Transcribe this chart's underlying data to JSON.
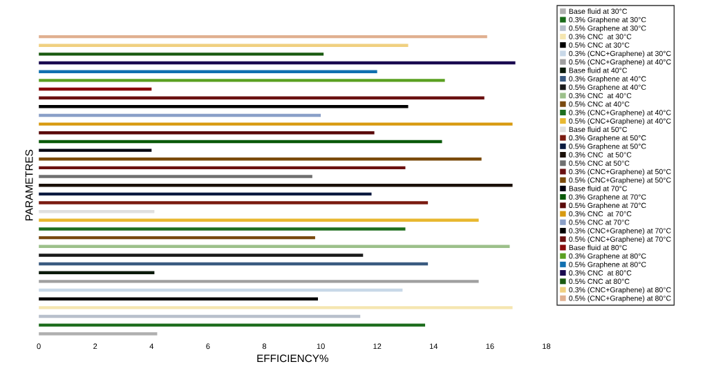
{
  "chart_data": {
    "type": "bar",
    "orientation": "horizontal",
    "xlabel": "EFFICIENCY%",
    "ylabel": "PARAMETRES",
    "categories": [
      null,
      null,
      null,
      null,
      null,
      null,
      null,
      null,
      null,
      null,
      null,
      null,
      null,
      null,
      null,
      null,
      null,
      null,
      null,
      null,
      null,
      null,
      null,
      null,
      null,
      null,
      null,
      null,
      null,
      null,
      null,
      null,
      null,
      null,
      null
    ],
    "xlim": [
      0,
      18
    ],
    "xticks": [
      0,
      2,
      4,
      6,
      8,
      10,
      12,
      14,
      16,
      18
    ],
    "tick_labels": "x",
    "grid": false,
    "stacked": true,
    "legend": "right",
    "series": [
      {
        "name": "Base fluid at 30°C",
        "color": "#b0b0b0",
        "values": [
          null,
          null,
          null,
          null,
          null,
          null,
          null,
          null,
          null,
          null,
          null,
          null,
          null,
          null,
          null,
          null,
          null,
          null,
          null,
          null,
          null,
          null,
          null,
          null,
          null,
          null,
          null,
          null,
          null,
          null,
          null,
          null,
          null,
          null,
          4.2
        ]
      },
      {
        "name": "0.3% Graphene at 30°C",
        "color": "#1a6b1a",
        "values": [
          null,
          null,
          null,
          null,
          null,
          null,
          null,
          null,
          null,
          null,
          null,
          null,
          null,
          null,
          null,
          null,
          null,
          null,
          null,
          null,
          null,
          null,
          null,
          null,
          null,
          null,
          null,
          null,
          null,
          null,
          null,
          null,
          null,
          13.7,
          null
        ]
      },
      {
        "name": "0.5% Graphene at 30°C",
        "color": "#b8c0cc",
        "values": [
          null,
          null,
          null,
          null,
          null,
          null,
          null,
          null,
          null,
          null,
          null,
          null,
          null,
          null,
          null,
          null,
          null,
          null,
          null,
          null,
          null,
          null,
          null,
          null,
          null,
          null,
          null,
          null,
          null,
          null,
          null,
          null,
          11.4,
          null,
          null
        ]
      },
      {
        "name": "0.3% CNC  at 30°C",
        "color": "#f5e6b0",
        "values": [
          null,
          null,
          null,
          null,
          null,
          null,
          null,
          null,
          null,
          null,
          null,
          null,
          null,
          null,
          null,
          null,
          null,
          null,
          null,
          null,
          null,
          null,
          null,
          null,
          null,
          null,
          null,
          null,
          null,
          null,
          null,
          16.8,
          null,
          null,
          null
        ]
      },
      {
        "name": "0.5% CNC at 30°C",
        "color": "#000000",
        "values": [
          null,
          null,
          null,
          null,
          null,
          null,
          null,
          null,
          null,
          null,
          null,
          null,
          null,
          null,
          null,
          null,
          null,
          null,
          null,
          null,
          null,
          null,
          null,
          null,
          null,
          null,
          null,
          null,
          null,
          null,
          9.9,
          null,
          null,
          null,
          null
        ]
      },
      {
        "name": "0.3% (CNC+Graphene) at 30°C",
        "color": "#c8d8e8",
        "values": [
          null,
          null,
          null,
          null,
          null,
          null,
          null,
          null,
          null,
          null,
          null,
          null,
          null,
          null,
          null,
          null,
          null,
          null,
          null,
          null,
          null,
          null,
          null,
          null,
          null,
          null,
          null,
          null,
          null,
          12.9,
          null,
          null,
          null,
          null,
          null
        ]
      },
      {
        "name": "0.5% (CNC+Graphene) at 40°C",
        "color": "#a0a0a0",
        "values": [
          null,
          null,
          null,
          null,
          null,
          null,
          null,
          null,
          null,
          null,
          null,
          null,
          null,
          null,
          null,
          null,
          null,
          null,
          null,
          null,
          null,
          null,
          null,
          null,
          null,
          null,
          null,
          null,
          15.6,
          null,
          null,
          null,
          null,
          null,
          null
        ]
      },
      {
        "name": "Base fluid at 40°C",
        "color": "#0a1a0a",
        "values": [
          null,
          null,
          null,
          null,
          null,
          null,
          null,
          null,
          null,
          null,
          null,
          null,
          null,
          null,
          null,
          null,
          null,
          null,
          null,
          null,
          null,
          null,
          null,
          null,
          null,
          null,
          null,
          4.1,
          null,
          null,
          null,
          null,
          null,
          null,
          null
        ]
      },
      {
        "name": "0.3% Graphene at 40°C",
        "color": "#3a5a80",
        "values": [
          null,
          null,
          null,
          null,
          null,
          null,
          null,
          null,
          null,
          null,
          null,
          null,
          null,
          null,
          null,
          null,
          null,
          null,
          null,
          null,
          null,
          null,
          null,
          null,
          null,
          null,
          13.8,
          null,
          null,
          null,
          null,
          null,
          null,
          null,
          null
        ]
      },
      {
        "name": "0.5% Graphene at 40°C",
        "color": "#1a1a1a",
        "values": [
          null,
          null,
          null,
          null,
          null,
          null,
          null,
          null,
          null,
          null,
          null,
          null,
          null,
          null,
          null,
          null,
          null,
          null,
          null,
          null,
          null,
          null,
          null,
          null,
          null,
          11.5,
          null,
          null,
          null,
          null,
          null,
          null,
          null,
          null,
          null
        ]
      },
      {
        "name": "0.3% CNC  at 40°C",
        "color": "#9cc08a",
        "values": [
          null,
          null,
          null,
          null,
          null,
          null,
          null,
          null,
          null,
          null,
          null,
          null,
          null,
          null,
          null,
          null,
          null,
          null,
          null,
          null,
          null,
          null,
          null,
          null,
          16.7,
          null,
          null,
          null,
          null,
          null,
          null,
          null,
          null,
          null,
          null
        ]
      },
      {
        "name": "0.5% CNC at 40°C",
        "color": "#7a4a10",
        "values": [
          null,
          null,
          null,
          null,
          null,
          null,
          null,
          null,
          null,
          null,
          null,
          null,
          null,
          null,
          null,
          null,
          null,
          null,
          null,
          null,
          null,
          null,
          null,
          9.8,
          null,
          null,
          null,
          null,
          null,
          null,
          null,
          null,
          null,
          null,
          null
        ]
      },
      {
        "name": "0.3% (CNC+Graphene) at 40°C",
        "color": "#1e6e1e",
        "values": [
          null,
          null,
          null,
          null,
          null,
          null,
          null,
          null,
          null,
          null,
          null,
          null,
          null,
          null,
          null,
          null,
          null,
          null,
          null,
          null,
          null,
          null,
          13.0,
          null,
          null,
          null,
          null,
          null,
          null,
          null,
          null,
          null,
          null,
          null,
          null
        ]
      },
      {
        "name": "0.5% (CNC+Graphene) at 40°C",
        "color": "#e8b830",
        "values": [
          null,
          null,
          null,
          null,
          null,
          null,
          null,
          null,
          null,
          null,
          null,
          null,
          null,
          null,
          null,
          null,
          null,
          null,
          null,
          null,
          null,
          15.6,
          null,
          null,
          null,
          null,
          null,
          null,
          null,
          null,
          null,
          null,
          null,
          null,
          null
        ]
      },
      {
        "name": "Base fluid at 50°C",
        "color": "#e0e0e0",
        "values": [
          null,
          null,
          null,
          null,
          null,
          null,
          null,
          null,
          null,
          null,
          null,
          null,
          null,
          null,
          null,
          null,
          null,
          null,
          null,
          null,
          4.1,
          null,
          null,
          null,
          null,
          null,
          null,
          null,
          null,
          null,
          null,
          null,
          null,
          null,
          null
        ]
      },
      {
        "name": "0.3% Graphene at 50°C",
        "color": "#7a1a10",
        "values": [
          null,
          null,
          null,
          null,
          null,
          null,
          null,
          null,
          null,
          null,
          null,
          null,
          null,
          null,
          null,
          null,
          null,
          null,
          null,
          13.8,
          null,
          null,
          null,
          null,
          null,
          null,
          null,
          null,
          null,
          null,
          null,
          null,
          null,
          null,
          null
        ]
      },
      {
        "name": "0.5% Graphene at 50°C",
        "color": "#0a1a40",
        "values": [
          null,
          null,
          null,
          null,
          null,
          null,
          null,
          null,
          null,
          null,
          null,
          null,
          null,
          null,
          null,
          null,
          null,
          null,
          11.8,
          null,
          null,
          null,
          null,
          null,
          null,
          null,
          null,
          null,
          null,
          null,
          null,
          null,
          null,
          null,
          null
        ]
      },
      {
        "name": "0.3% CNC  at 50°C",
        "color": "#1a1008",
        "values": [
          null,
          null,
          null,
          null,
          null,
          null,
          null,
          null,
          null,
          null,
          null,
          null,
          null,
          null,
          null,
          null,
          null,
          16.8,
          null,
          null,
          null,
          null,
          null,
          null,
          null,
          null,
          null,
          null,
          null,
          null,
          null,
          null,
          null,
          null,
          null
        ]
      },
      {
        "name": "0.5% CNC at 50°C",
        "color": "#707070",
        "values": [
          null,
          null,
          null,
          null,
          null,
          null,
          null,
          null,
          null,
          null,
          null,
          null,
          null,
          null,
          null,
          null,
          9.7,
          null,
          null,
          null,
          null,
          null,
          null,
          null,
          null,
          null,
          null,
          null,
          null,
          null,
          null,
          null,
          null,
          null,
          null
        ]
      },
      {
        "name": "0.3% (CNC+Graphene) at 50°C",
        "color": "#6a1010",
        "values": [
          null,
          null,
          null,
          null,
          null,
          null,
          null,
          null,
          null,
          null,
          null,
          null,
          null,
          null,
          null,
          13.0,
          null,
          null,
          null,
          null,
          null,
          null,
          null,
          null,
          null,
          null,
          null,
          null,
          null,
          null,
          null,
          null,
          null,
          null,
          null
        ]
      },
      {
        "name": "0.5% (CNC+Graphene) at 50°C",
        "color": "#7a4a0a",
        "values": [
          null,
          null,
          null,
          null,
          null,
          null,
          null,
          null,
          null,
          null,
          null,
          null,
          null,
          null,
          15.7,
          null,
          null,
          null,
          null,
          null,
          null,
          null,
          null,
          null,
          null,
          null,
          null,
          null,
          null,
          null,
          null,
          null,
          null,
          null,
          null
        ]
      },
      {
        "name": "Base fluid at 70°C",
        "color": "#000010",
        "values": [
          null,
          null,
          null,
          null,
          null,
          null,
          null,
          null,
          null,
          null,
          null,
          null,
          null,
          4.0,
          null,
          null,
          null,
          null,
          null,
          null,
          null,
          null,
          null,
          null,
          null,
          null,
          null,
          null,
          null,
          null,
          null,
          null,
          null,
          null,
          null
        ]
      },
      {
        "name": "0.3% Graphene at 70°C",
        "color": "#0a5a0a",
        "values": [
          null,
          null,
          null,
          null,
          null,
          null,
          null,
          null,
          null,
          null,
          null,
          null,
          14.3,
          null,
          null,
          null,
          null,
          null,
          null,
          null,
          null,
          null,
          null,
          null,
          null,
          null,
          null,
          null,
          null,
          null,
          null,
          null,
          null,
          null,
          null
        ]
      },
      {
        "name": "0.5% Graphene at 70°C",
        "color": "#5a0a0a",
        "values": [
          null,
          null,
          null,
          null,
          null,
          null,
          null,
          null,
          null,
          null,
          null,
          11.9,
          null,
          null,
          null,
          null,
          null,
          null,
          null,
          null,
          null,
          null,
          null,
          null,
          null,
          null,
          null,
          null,
          null,
          null,
          null,
          null,
          null,
          null,
          null
        ]
      },
      {
        "name": "0.3% CNC  at 70°C",
        "color": "#d89a10",
        "values": [
          null,
          null,
          null,
          null,
          null,
          null,
          null,
          null,
          null,
          null,
          16.8,
          null,
          null,
          null,
          null,
          null,
          null,
          null,
          null,
          null,
          null,
          null,
          null,
          null,
          null,
          null,
          null,
          null,
          null,
          null,
          null,
          null,
          null,
          null,
          null
        ]
      },
      {
        "name": "0.5% CNC at 70°C",
        "color": "#8aa0c8",
        "values": [
          null,
          null,
          null,
          null,
          null,
          null,
          null,
          null,
          null,
          10.0,
          null,
          null,
          null,
          null,
          null,
          null,
          null,
          null,
          null,
          null,
          null,
          null,
          null,
          null,
          null,
          null,
          null,
          null,
          null,
          null,
          null,
          null,
          null,
          null,
          null
        ]
      },
      {
        "name": "0.3% (CNC+Graphene) at 70°C",
        "color": "#000000",
        "values": [
          null,
          null,
          null,
          null,
          null,
          null,
          null,
          null,
          13.1,
          null,
          null,
          null,
          null,
          null,
          null,
          null,
          null,
          null,
          null,
          null,
          null,
          null,
          null,
          null,
          null,
          null,
          null,
          null,
          null,
          null,
          null,
          null,
          null,
          null,
          null
        ]
      },
      {
        "name": "0.5% (CNC+Graphene) at 70°C",
        "color": "#6a1010",
        "values": [
          null,
          null,
          null,
          null,
          null,
          null,
          null,
          15.8,
          null,
          null,
          null,
          null,
          null,
          null,
          null,
          null,
          null,
          null,
          null,
          null,
          null,
          null,
          null,
          null,
          null,
          null,
          null,
          null,
          null,
          null,
          null,
          null,
          null,
          null,
          null
        ]
      },
      {
        "name": "Base fluid at 80°C",
        "color": "#8a0a0a",
        "values": [
          null,
          null,
          null,
          null,
          null,
          null,
          4.0,
          null,
          null,
          null,
          null,
          null,
          null,
          null,
          null,
          null,
          null,
          null,
          null,
          null,
          null,
          null,
          null,
          null,
          null,
          null,
          null,
          null,
          null,
          null,
          null,
          null,
          null,
          null,
          null
        ]
      },
      {
        "name": "0.3% Graphene at 80°C",
        "color": "#5aa020",
        "values": [
          null,
          null,
          null,
          null,
          null,
          14.4,
          null,
          null,
          null,
          null,
          null,
          null,
          null,
          null,
          null,
          null,
          null,
          null,
          null,
          null,
          null,
          null,
          null,
          null,
          null,
          null,
          null,
          null,
          null,
          null,
          null,
          null,
          null,
          null,
          null
        ]
      },
      {
        "name": "0.5% Graphene at 80°C",
        "color": "#1070b0",
        "values": [
          null,
          null,
          null,
          null,
          12.0,
          null,
          null,
          null,
          null,
          null,
          null,
          null,
          null,
          null,
          null,
          null,
          null,
          null,
          null,
          null,
          null,
          null,
          null,
          null,
          null,
          null,
          null,
          null,
          null,
          null,
          null,
          null,
          null,
          null,
          null
        ]
      },
      {
        "name": "0.3% CNC  at 80°C",
        "color": "#1a0a50",
        "values": [
          null,
          null,
          null,
          16.9,
          null,
          null,
          null,
          null,
          null,
          null,
          null,
          null,
          null,
          null,
          null,
          null,
          null,
          null,
          null,
          null,
          null,
          null,
          null,
          null,
          null,
          null,
          null,
          null,
          null,
          null,
          null,
          null,
          null,
          null,
          null
        ]
      },
      {
        "name": "0.5% CNC at 80°C",
        "color": "#1a5a10",
        "values": [
          null,
          null,
          10.1,
          null,
          null,
          null,
          null,
          null,
          null,
          null,
          null,
          null,
          null,
          null,
          null,
          null,
          null,
          null,
          null,
          null,
          null,
          null,
          null,
          null,
          null,
          null,
          null,
          null,
          null,
          null,
          null,
          null,
          null,
          null,
          null
        ]
      },
      {
        "name": "0.3% (CNC+Graphene) at 80°C",
        "color": "#f0d080",
        "values": [
          null,
          13.1,
          null,
          null,
          null,
          null,
          null,
          null,
          null,
          null,
          null,
          null,
          null,
          null,
          null,
          null,
          null,
          null,
          null,
          null,
          null,
          null,
          null,
          null,
          null,
          null,
          null,
          null,
          null,
          null,
          null,
          null,
          null,
          null,
          null
        ]
      },
      {
        "name": "0.5% (CNC+Graphene) at 80°C",
        "color": "#e0b090",
        "values": [
          15.9,
          null,
          null,
          null,
          null,
          null,
          null,
          null,
          null,
          null,
          null,
          null,
          null,
          null,
          null,
          null,
          null,
          null,
          null,
          null,
          null,
          null,
          null,
          null,
          null,
          null,
          null,
          null,
          null,
          null,
          null,
          null,
          null,
          null,
          null
        ]
      }
    ]
  }
}
